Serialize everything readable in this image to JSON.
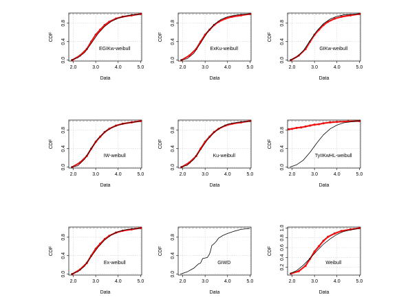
{
  "colors": {
    "fitted": "#000000",
    "empirical": "#ee1111",
    "grid": "#d3d3d3",
    "background": "#ffffff"
  },
  "chart_data": [
    {
      "type": "line",
      "label": "EGIKw-weibull",
      "xlabel": "Data",
      "ylabel": "CDF",
      "xlim": [
        1.8,
        5.05
      ],
      "ylim": [
        -0.02,
        1.02
      ],
      "xticks": [
        "2.0",
        "3.0",
        "4.0",
        "5.0"
      ],
      "yticks": [
        "0.0",
        "0.4",
        "0.8"
      ],
      "grid": true,
      "series": [
        {
          "role": "fitted",
          "x": [
            1.9,
            2.2,
            2.5,
            2.8,
            3.1,
            3.4,
            3.7,
            4.0,
            4.3,
            4.6,
            5.0
          ],
          "y": [
            0.0,
            0.05,
            0.16,
            0.36,
            0.57,
            0.73,
            0.84,
            0.91,
            0.95,
            0.98,
            0.99
          ]
        },
        {
          "role": "empirical",
          "x": [
            1.95,
            2.3,
            2.6,
            2.8,
            3.0,
            3.2,
            3.4,
            3.6,
            3.9,
            4.2,
            4.6,
            5.0
          ],
          "y": [
            0.0,
            0.1,
            0.24,
            0.4,
            0.55,
            0.66,
            0.76,
            0.83,
            0.9,
            0.94,
            0.97,
            1.0
          ]
        }
      ]
    },
    {
      "type": "line",
      "label": "ExKu-weibull",
      "xlabel": "Data",
      "ylabel": "CDF",
      "xlim": [
        1.8,
        5.05
      ],
      "ylim": [
        -0.02,
        1.02
      ],
      "xticks": [
        "2.0",
        "3.0",
        "4.0",
        "5.0"
      ],
      "yticks": [
        "0.0",
        "0.4",
        "0.8"
      ],
      "grid": true,
      "series": [
        {
          "role": "fitted",
          "x": [
            1.9,
            2.2,
            2.5,
            2.8,
            3.1,
            3.4,
            3.7,
            4.0,
            4.3,
            4.6,
            5.0
          ],
          "y": [
            0.0,
            0.03,
            0.15,
            0.37,
            0.6,
            0.77,
            0.88,
            0.94,
            0.97,
            0.99,
            1.0
          ]
        },
        {
          "role": "empirical",
          "x": [
            1.95,
            2.3,
            2.6,
            2.8,
            3.0,
            3.2,
            3.4,
            3.6,
            3.9,
            4.2,
            4.6,
            5.0
          ],
          "y": [
            0.0,
            0.1,
            0.24,
            0.4,
            0.55,
            0.66,
            0.76,
            0.83,
            0.9,
            0.94,
            0.97,
            1.0
          ]
        }
      ]
    },
    {
      "type": "line",
      "label": "GIKw-weibull",
      "xlabel": "Data",
      "ylabel": "CDF",
      "xlim": [
        1.8,
        5.05
      ],
      "ylim": [
        -0.02,
        1.02
      ],
      "xticks": [
        "2.0",
        "3.0",
        "4.0",
        "5.0"
      ],
      "yticks": [
        "0.0",
        "0.4",
        "0.8"
      ],
      "grid": true,
      "series": [
        {
          "role": "fitted",
          "x": [
            1.9,
            2.2,
            2.5,
            2.8,
            3.1,
            3.4,
            3.7,
            4.0,
            4.3,
            4.6,
            5.0
          ],
          "y": [
            0.0,
            0.06,
            0.2,
            0.42,
            0.63,
            0.79,
            0.89,
            0.95,
            0.98,
            0.99,
            1.0
          ]
        },
        {
          "role": "empirical",
          "x": [
            1.95,
            2.3,
            2.6,
            2.8,
            3.0,
            3.2,
            3.4,
            3.6,
            3.9,
            4.2,
            4.6,
            5.0
          ],
          "y": [
            0.0,
            0.1,
            0.24,
            0.4,
            0.55,
            0.66,
            0.76,
            0.83,
            0.9,
            0.94,
            0.97,
            1.0
          ]
        }
      ]
    },
    {
      "type": "line",
      "label": "IW-weibull",
      "xlabel": "Data",
      "ylabel": "CDF",
      "xlim": [
        1.8,
        5.05
      ],
      "ylim": [
        -0.02,
        1.02
      ],
      "xticks": [
        "2.0",
        "3.0",
        "4.0",
        "5.0"
      ],
      "yticks": [
        "0.0",
        "0.4",
        "0.8"
      ],
      "grid": true,
      "series": [
        {
          "role": "fitted",
          "x": [
            1.9,
            2.2,
            2.5,
            2.8,
            3.1,
            3.4,
            3.7,
            4.0,
            4.3,
            4.6,
            5.0
          ],
          "y": [
            0.0,
            0.03,
            0.17,
            0.4,
            0.61,
            0.76,
            0.85,
            0.91,
            0.95,
            0.97,
            0.99
          ]
        },
        {
          "role": "empirical",
          "x": [
            1.95,
            2.3,
            2.6,
            2.8,
            3.0,
            3.2,
            3.4,
            3.6,
            3.9,
            4.2,
            4.6,
            5.0
          ],
          "y": [
            0.0,
            0.1,
            0.24,
            0.4,
            0.55,
            0.66,
            0.76,
            0.83,
            0.9,
            0.94,
            0.97,
            1.0
          ]
        }
      ]
    },
    {
      "type": "line",
      "label": "Ku-weibull",
      "xlabel": "Data",
      "ylabel": "CDF",
      "xlim": [
        1.8,
        5.05
      ],
      "ylim": [
        -0.02,
        1.02
      ],
      "xticks": [
        "2.0",
        "3.0",
        "4.0",
        "5.0"
      ],
      "yticks": [
        "0.0",
        "0.4",
        "0.8"
      ],
      "grid": true,
      "series": [
        {
          "role": "fitted",
          "x": [
            1.9,
            2.2,
            2.5,
            2.8,
            3.1,
            3.4,
            3.7,
            4.0,
            4.3,
            4.6,
            5.0
          ],
          "y": [
            0.0,
            0.04,
            0.17,
            0.38,
            0.59,
            0.75,
            0.86,
            0.93,
            0.96,
            0.98,
            0.99
          ]
        },
        {
          "role": "empirical",
          "x": [
            1.95,
            2.3,
            2.6,
            2.8,
            3.0,
            3.2,
            3.4,
            3.6,
            3.9,
            4.2,
            4.6,
            5.0
          ],
          "y": [
            0.0,
            0.1,
            0.24,
            0.4,
            0.55,
            0.66,
            0.76,
            0.83,
            0.9,
            0.94,
            0.97,
            1.0
          ]
        }
      ]
    },
    {
      "type": "line",
      "label": "TyIIKwHL-weibull",
      "xlabel": "Data",
      "ylabel": "CDF",
      "xlim": [
        1.8,
        5.05
      ],
      "ylim": [
        -0.02,
        1.02
      ],
      "xticks": [
        "2.0",
        "3.0",
        "4.0",
        "5.0"
      ],
      "yticks": [
        "0.0",
        "0.4",
        "0.8"
      ],
      "grid": true,
      "series": [
        {
          "role": "fitted",
          "x": [
            1.9,
            2.2,
            2.5,
            2.8,
            3.1,
            3.4,
            3.7,
            4.0,
            4.3,
            4.6,
            5.0
          ],
          "y": [
            0.0,
            0.05,
            0.15,
            0.32,
            0.52,
            0.7,
            0.83,
            0.91,
            0.96,
            0.98,
            1.0
          ]
        },
        {
          "role": "empirical",
          "x": [
            1.85,
            2.0,
            2.2,
            2.4,
            2.6,
            2.8,
            3.0,
            3.2,
            3.4,
            3.7,
            4.0,
            4.5,
            5.0
          ],
          "y": [
            0.82,
            0.83,
            0.85,
            0.86,
            0.88,
            0.9,
            0.92,
            0.93,
            0.95,
            0.97,
            0.98,
            0.99,
            1.0
          ]
        }
      ]
    },
    {
      "type": "line",
      "label": "Ex-weibull",
      "xlabel": "Data",
      "ylabel": "CDF",
      "xlim": [
        1.8,
        5.05
      ],
      "ylim": [
        -0.02,
        1.02
      ],
      "xticks": [
        "2.0",
        "3.0",
        "4.0",
        "5.0"
      ],
      "yticks": [
        "0.0",
        "0.4",
        "0.8"
      ],
      "grid": true,
      "series": [
        {
          "role": "fitted",
          "x": [
            1.9,
            2.2,
            2.5,
            2.8,
            3.1,
            3.4,
            3.7,
            4.0,
            4.3,
            4.6,
            5.0
          ],
          "y": [
            0.0,
            0.05,
            0.17,
            0.38,
            0.58,
            0.74,
            0.85,
            0.92,
            0.96,
            0.98,
            0.99
          ]
        },
        {
          "role": "empirical",
          "x": [
            1.95,
            2.3,
            2.6,
            2.8,
            3.0,
            3.2,
            3.4,
            3.6,
            3.9,
            4.2,
            4.6,
            5.0
          ],
          "y": [
            0.0,
            0.1,
            0.24,
            0.4,
            0.55,
            0.66,
            0.76,
            0.83,
            0.9,
            0.94,
            0.97,
            1.0
          ]
        }
      ]
    },
    {
      "type": "line",
      "label": "GIWD",
      "xlabel": "Data",
      "ylabel": "CDF",
      "xlim": [
        1.8,
        5.05
      ],
      "ylim": [
        -0.02,
        1.02
      ],
      "xticks": [
        "2.0",
        "3.0",
        "4.0",
        "5.0"
      ],
      "yticks": [
        "0.0",
        "0.4",
        "0.8"
      ],
      "grid": true,
      "series": [
        {
          "role": "fitted",
          "x": [
            1.9,
            2.2,
            2.5,
            2.7,
            2.8,
            2.85,
            2.9,
            3.0,
            3.1,
            3.2,
            3.25,
            3.3,
            3.4,
            3.5,
            3.6,
            3.8,
            4.0,
            4.3,
            4.6,
            5.0
          ],
          "y": [
            0.0,
            0.05,
            0.13,
            0.22,
            0.24,
            0.3,
            0.34,
            0.35,
            0.36,
            0.44,
            0.52,
            0.62,
            0.66,
            0.71,
            0.78,
            0.84,
            0.88,
            0.93,
            0.97,
            0.99
          ]
        }
      ]
    },
    {
      "type": "line",
      "label": "Weibull",
      "xlabel": "Data",
      "ylabel": "CDF",
      "xlim": [
        1.8,
        5.05
      ],
      "ylim": [
        0.04,
        1.02
      ],
      "xticks": [
        "2.0",
        "3.0",
        "4.0",
        "5.0"
      ],
      "yticks": [
        "0.2",
        "0.4",
        "0.6",
        "0.8",
        "1.0"
      ],
      "grid": true,
      "series": [
        {
          "role": "fitted",
          "x": [
            1.9,
            2.2,
            2.5,
            2.8,
            3.1,
            3.4,
            3.7,
            4.0,
            4.3,
            4.6,
            5.0
          ],
          "y": [
            0.07,
            0.13,
            0.24,
            0.38,
            0.53,
            0.67,
            0.78,
            0.87,
            0.93,
            0.96,
            0.99
          ]
        },
        {
          "role": "empirical",
          "x": [
            1.95,
            2.3,
            2.6,
            2.8,
            3.0,
            3.2,
            3.4,
            3.6,
            3.9,
            4.2,
            4.6,
            5.0
          ],
          "y": [
            0.07,
            0.12,
            0.23,
            0.37,
            0.52,
            0.63,
            0.74,
            0.82,
            0.89,
            0.94,
            0.97,
            1.0
          ]
        }
      ]
    }
  ]
}
